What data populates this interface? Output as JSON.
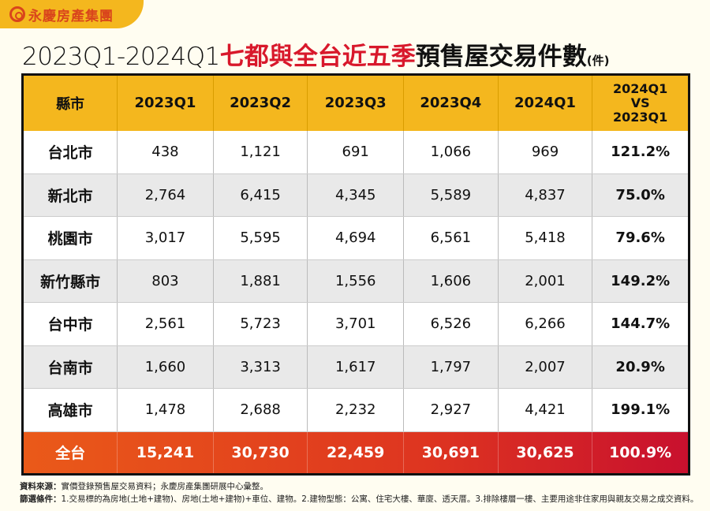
{
  "brand": "永慶房產集團",
  "title": {
    "period": "2023Q1-2024Q1",
    "highlight": "七都與全台近五季",
    "main": "預售屋交易件數",
    "unit": "(件)"
  },
  "colors": {
    "header": "#f4b71e",
    "accent": "#d8182b",
    "total_start": "#ea5a19",
    "total_end": "#c8102e"
  },
  "chart_data": {
    "type": "table",
    "columns": [
      "縣市",
      "2023Q1",
      "2023Q2",
      "2023Q3",
      "2023Q4",
      "2024Q1",
      "2024Q1 VS 2023Q1"
    ],
    "column_lines": [
      [
        "縣市"
      ],
      [
        "2023Q1"
      ],
      [
        "2023Q2"
      ],
      [
        "2023Q3"
      ],
      [
        "2023Q4"
      ],
      [
        "2024Q1"
      ],
      [
        "2024Q1",
        "VS",
        "2023Q1"
      ]
    ],
    "rows": [
      [
        "台北市",
        "438",
        "1,121",
        "691",
        "1,066",
        "969",
        "121.2%"
      ],
      [
        "新北市",
        "2,764",
        "6,415",
        "4,345",
        "5,589",
        "4,837",
        "75.0%"
      ],
      [
        "桃園市",
        "3,017",
        "5,595",
        "4,694",
        "6,561",
        "5,418",
        "79.6%"
      ],
      [
        "新竹縣市",
        "803",
        "1,881",
        "1,556",
        "1,606",
        "2,001",
        "149.2%"
      ],
      [
        "台中市",
        "2,561",
        "5,723",
        "3,701",
        "6,526",
        "6,266",
        "144.7%"
      ],
      [
        "台南市",
        "1,660",
        "3,313",
        "1,617",
        "1,797",
        "2,007",
        "20.9%"
      ],
      [
        "高雄市",
        "1,478",
        "2,688",
        "2,232",
        "2,927",
        "4,421",
        "199.1%"
      ]
    ],
    "total": [
      "全台",
      "15,241",
      "30,730",
      "22,459",
      "30,691",
      "30,625",
      "100.9%"
    ]
  },
  "notes": {
    "source_label": "資料來源：",
    "source": "實價登錄預售屋交易資料；永慶房產集團研展中心彙整。",
    "filter_label": "篩選條件：",
    "filter": "1.交易標的為房地(土地+建物)、房地(土地+建物)+車位、建物。2.建物型態：公寓、住宅大樓、華廈、透天厝。3.排除樓層一樓、主要用途非住家用與親友交易之成交資料。"
  }
}
